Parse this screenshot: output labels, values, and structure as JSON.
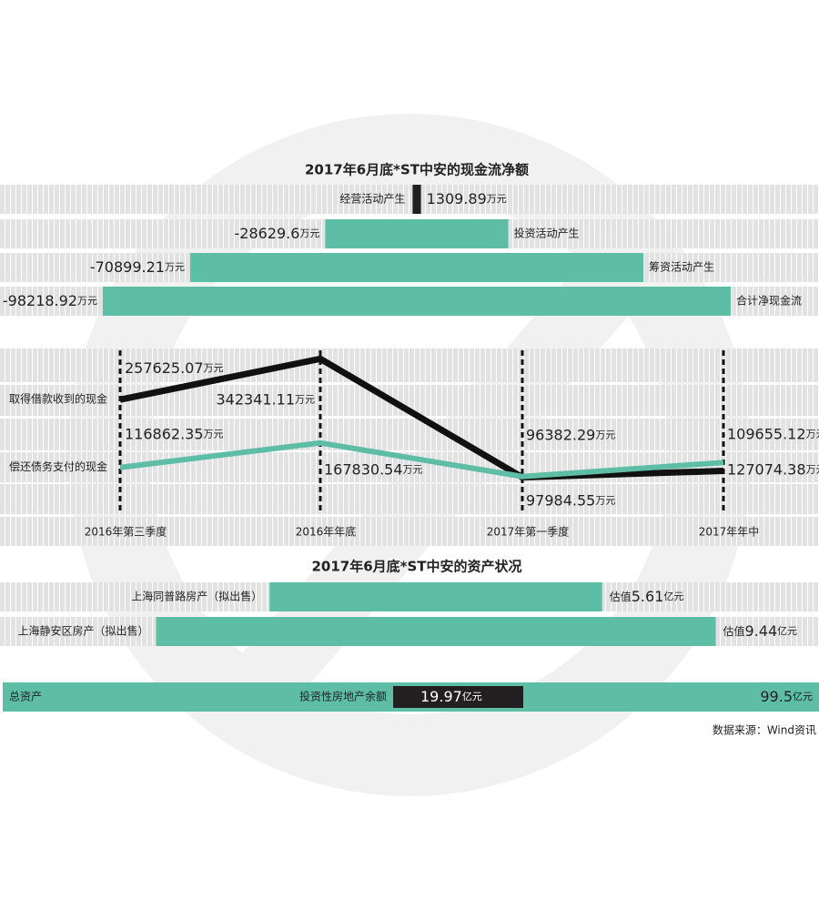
{
  "chart_data": [
    {
      "type": "bar",
      "title": "2017年6月底*ST中安的现金流净额",
      "categories": [
        "经营活动产生",
        "投资活动产生",
        "筹资活动产生",
        "合计净现金流"
      ],
      "values": [
        1309.89,
        -28629.6,
        -70899.21,
        -98218.92
      ],
      "unit": "万元",
      "colors": [
        "#231f20",
        "#5dbea5",
        "#5dbea5",
        "#5dbea5"
      ]
    },
    {
      "type": "line",
      "categories": [
        "2016年第三季度",
        "2016年年底",
        "2017年第一季度",
        "2017年年中"
      ],
      "series": [
        {
          "name": "取得借款收到的现金",
          "color": "#111111",
          "values": [
            257625.07,
            342341.11,
            96382.29,
            109655.12
          ]
        },
        {
          "name": "偿还债务支付的现金",
          "color": "#5dbea5",
          "values": [
            116862.35,
            167830.54,
            97984.55,
            127074.38
          ]
        }
      ],
      "unit": "万元",
      "ylim": [
        20000,
        360000
      ]
    },
    {
      "type": "bar",
      "title": "2017年6月底*ST中安的资产状况",
      "categories": [
        "上海同普路房产（拟出售）",
        "上海静安区房产（拟出售）"
      ],
      "values": [
        5.61,
        9.44
      ],
      "value_prefix": "估值",
      "unit": "亿元",
      "color": "#5dbea5",
      "total": {
        "name": "总资产",
        "value": 99.5,
        "part_name": "投资性房地产余额",
        "part_value": 19.97
      }
    }
  ],
  "source": "数据来源：Wind资讯"
}
